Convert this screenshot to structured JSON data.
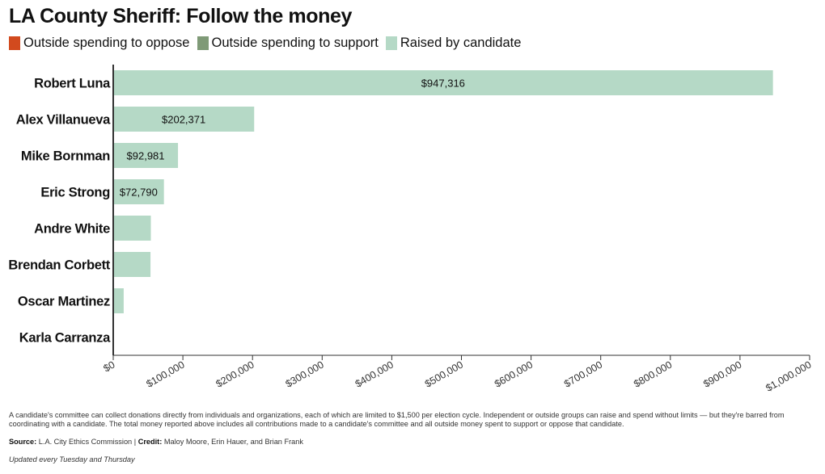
{
  "title": "LA County Sheriff: Follow the money",
  "legend": [
    {
      "label": "Outside spending to oppose",
      "color": "#d24a1e"
    },
    {
      "label": "Outside spending to support",
      "color": "#7f9a77"
    },
    {
      "label": "Raised by candidate",
      "color": "#b5d9c6"
    }
  ],
  "chart_data": {
    "type": "bar",
    "orientation": "horizontal",
    "stacked": true,
    "categories": [
      "Robert Luna",
      "Alex Villanueva",
      "Mike Bornman",
      "Eric Strong",
      "Andre White",
      "Brendan Corbett",
      "Oscar Martinez",
      "Karla Carranza"
    ],
    "series": [
      {
        "name": "Outside spending to oppose",
        "color": "#d24a1e",
        "values": [
          0,
          0,
          0,
          0,
          0,
          0,
          0,
          0
        ]
      },
      {
        "name": "Outside spending to support",
        "color": "#7f9a77",
        "values": [
          0,
          0,
          0,
          0,
          0,
          0,
          0,
          0
        ]
      },
      {
        "name": "Raised by candidate",
        "color": "#b5d9c6",
        "values": [
          947316,
          202371,
          92981,
          72790,
          54000,
          53500,
          15000,
          1000
        ]
      }
    ],
    "data_labels": [
      "$947,316",
      "$202,371",
      "$92,981",
      "$72,790",
      "",
      "",
      "",
      ""
    ],
    "xlim": [
      0,
      1000000
    ],
    "x_ticks": [
      0,
      100000,
      200000,
      300000,
      400000,
      500000,
      600000,
      700000,
      800000,
      900000,
      1000000
    ],
    "x_tick_labels": [
      "$0",
      "$100,000",
      "$200,000",
      "$300,000",
      "$400,000",
      "$500,000",
      "$600,000",
      "$700,000",
      "$800,000",
      "$900,000",
      "$1,000,000"
    ],
    "grid": false,
    "legend_position": "top-left"
  },
  "notes": "A candidate's committee can collect donations directly from individuals and organizations, each of which are limited to $1,500 per election cycle. Independent or outside groups can raise and spend without limits — but they're barred from coordinating with a candidate. The total money reported above includes all contributions made to a candidate's committee and all outside money spent to support or oppose that candidate.",
  "source": {
    "source_label": "Source:",
    "source_text": "L.A. City Ethics Commission",
    "separator": "|",
    "credit_label": "Credit:",
    "credit_text": "Maloy Moore, Erin Hauer, and Brian Frank"
  },
  "updated": "Updated every Tuesday and Thursday"
}
